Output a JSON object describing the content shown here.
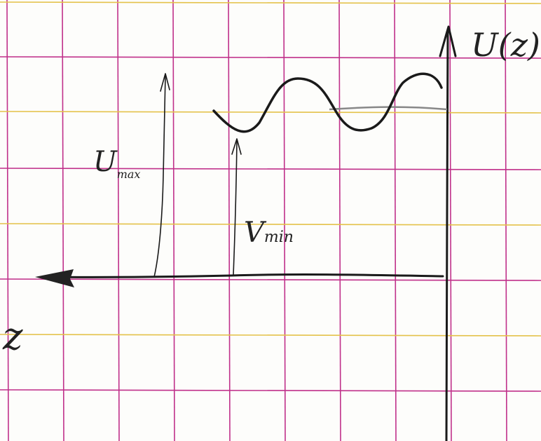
{
  "axis_y_label": "U(z)",
  "axis_x_label": "z",
  "annotations": [
    {
      "label": "U",
      "subscript": "max"
    },
    {
      "label": "V",
      "subscript": "min"
    }
  ]
}
